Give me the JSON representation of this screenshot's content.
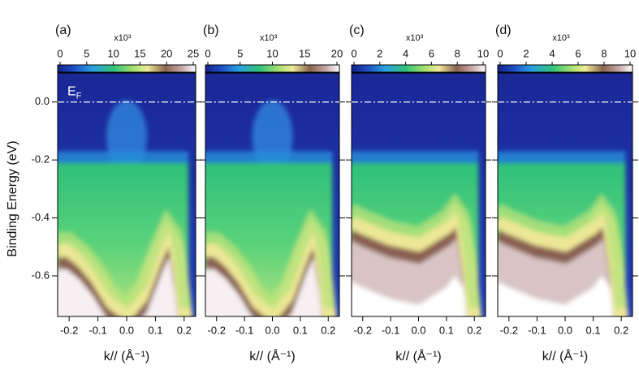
{
  "chart_data": [
    {
      "type": "heatmap",
      "panel_label": "(a)",
      "clim": [
        0,
        25
      ],
      "cticks": [
        0,
        5,
        10,
        15,
        20,
        25
      ],
      "colorbar_label": "x10³",
      "xlim": [
        -0.24,
        0.24
      ],
      "xticks": [
        -0.2,
        -0.1,
        {
          "value": 0,
          "label": "0.0"
        },
        0.1,
        0.2
      ],
      "xlabel": "k// (Å⁻¹)",
      "ylim": [
        -0.74,
        0.1
      ],
      "yticks": [
        {
          "value": 0,
          "label": "0.0"
        },
        -0.2,
        -0.4,
        -0.6
      ],
      "ylabel": "Binding Energy (eV)",
      "fermi_level": 0,
      "fermi_label": {
        "main": "E",
        "sub": "F"
      }
    },
    {
      "type": "heatmap",
      "panel_label": "(b)",
      "clim": [
        0,
        20
      ],
      "cticks": [
        0,
        5,
        10,
        15,
        20
      ],
      "colorbar_label": "x10³",
      "xlim": [
        -0.24,
        0.24
      ],
      "xticks": [
        -0.2,
        -0.1,
        {
          "value": 0,
          "label": "0.0"
        },
        0.1,
        0.2
      ],
      "xlabel": "k// (Å⁻¹)",
      "ylim": [
        -0.74,
        0.1
      ],
      "yticks": [
        0,
        -0.2,
        -0.4,
        -0.6
      ],
      "fermi_level": 0
    },
    {
      "type": "heatmap",
      "panel_label": "(c)",
      "clim": [
        0,
        10
      ],
      "cticks": [
        0,
        2,
        4,
        6,
        8,
        10
      ],
      "colorbar_label": "x10³",
      "xlim": [
        -0.24,
        0.24
      ],
      "xticks": [
        -0.2,
        -0.1,
        {
          "value": 0,
          "label": "0.0"
        },
        0.1,
        0.2
      ],
      "xlabel": "k// (Å⁻¹)",
      "ylim": [
        -0.74,
        0.1
      ],
      "yticks": [
        0,
        -0.2,
        -0.4,
        -0.6
      ],
      "fermi_level": 0
    },
    {
      "type": "heatmap",
      "panel_label": "(d)",
      "clim": [
        0,
        10
      ],
      "cticks": [
        0,
        2,
        4,
        6,
        8,
        10
      ],
      "colorbar_label": "x10³",
      "xlim": [
        -0.24,
        0.24
      ],
      "xticks": [
        -0.2,
        -0.1,
        {
          "value": 0,
          "label": "0.0"
        },
        0.1,
        0.2
      ],
      "xlabel": "k// (Å⁻¹)",
      "ylim": [
        -0.74,
        0.1
      ],
      "yticks": [
        0,
        -0.2,
        -0.4,
        -0.6
      ],
      "fermi_level": 0
    }
  ]
}
